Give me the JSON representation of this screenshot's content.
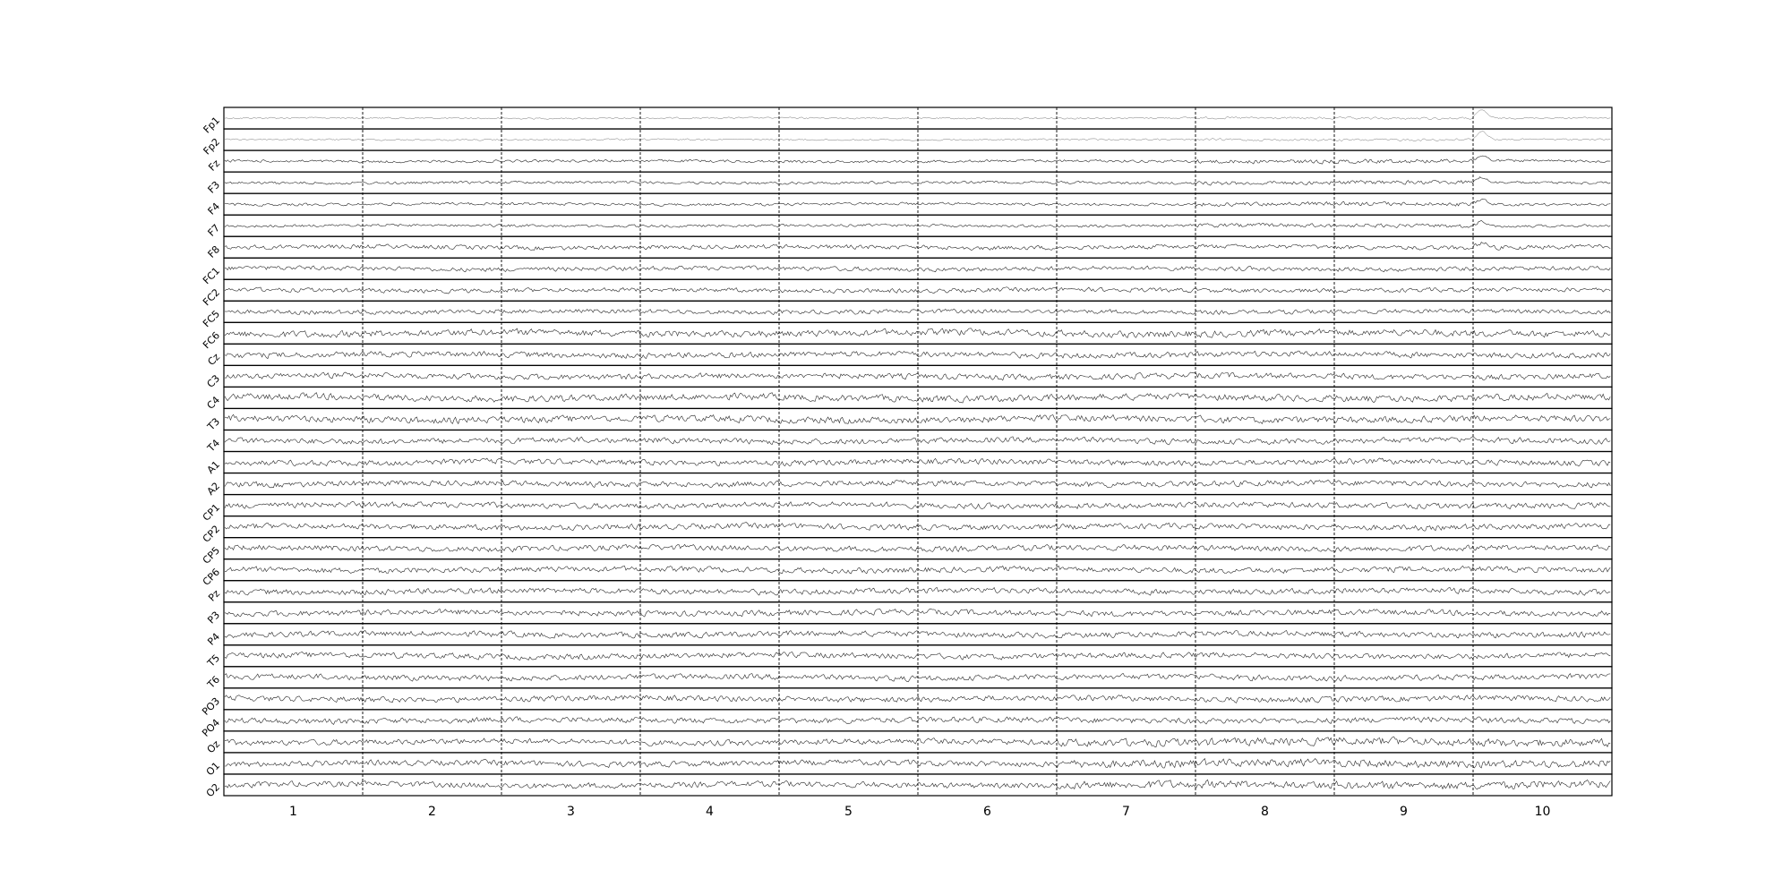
{
  "chart_data": {
    "type": "line",
    "title": "",
    "xlabel": "",
    "ylabel": "",
    "grid": "vertical dashed epoch separators",
    "epochs": [
      "1",
      "2",
      "3",
      "4",
      "5",
      "6",
      "7",
      "8",
      "9",
      "10"
    ],
    "channels": [
      "Fp1",
      "Fp2",
      "Fz",
      "F3",
      "F4",
      "F7",
      "F8",
      "FC1",
      "FC2",
      "FC5",
      "FC6",
      "Cz",
      "C3",
      "C4",
      "T3",
      "T4",
      "A1",
      "A2",
      "CP1",
      "CP2",
      "CP5",
      "CP6",
      "Pz",
      "P3",
      "P4",
      "T5",
      "T6",
      "PO3",
      "PO4",
      "Oz",
      "O1",
      "O2"
    ],
    "line_color": "#000000",
    "frame_color": "#000000",
    "separator_color": "#000000"
  }
}
